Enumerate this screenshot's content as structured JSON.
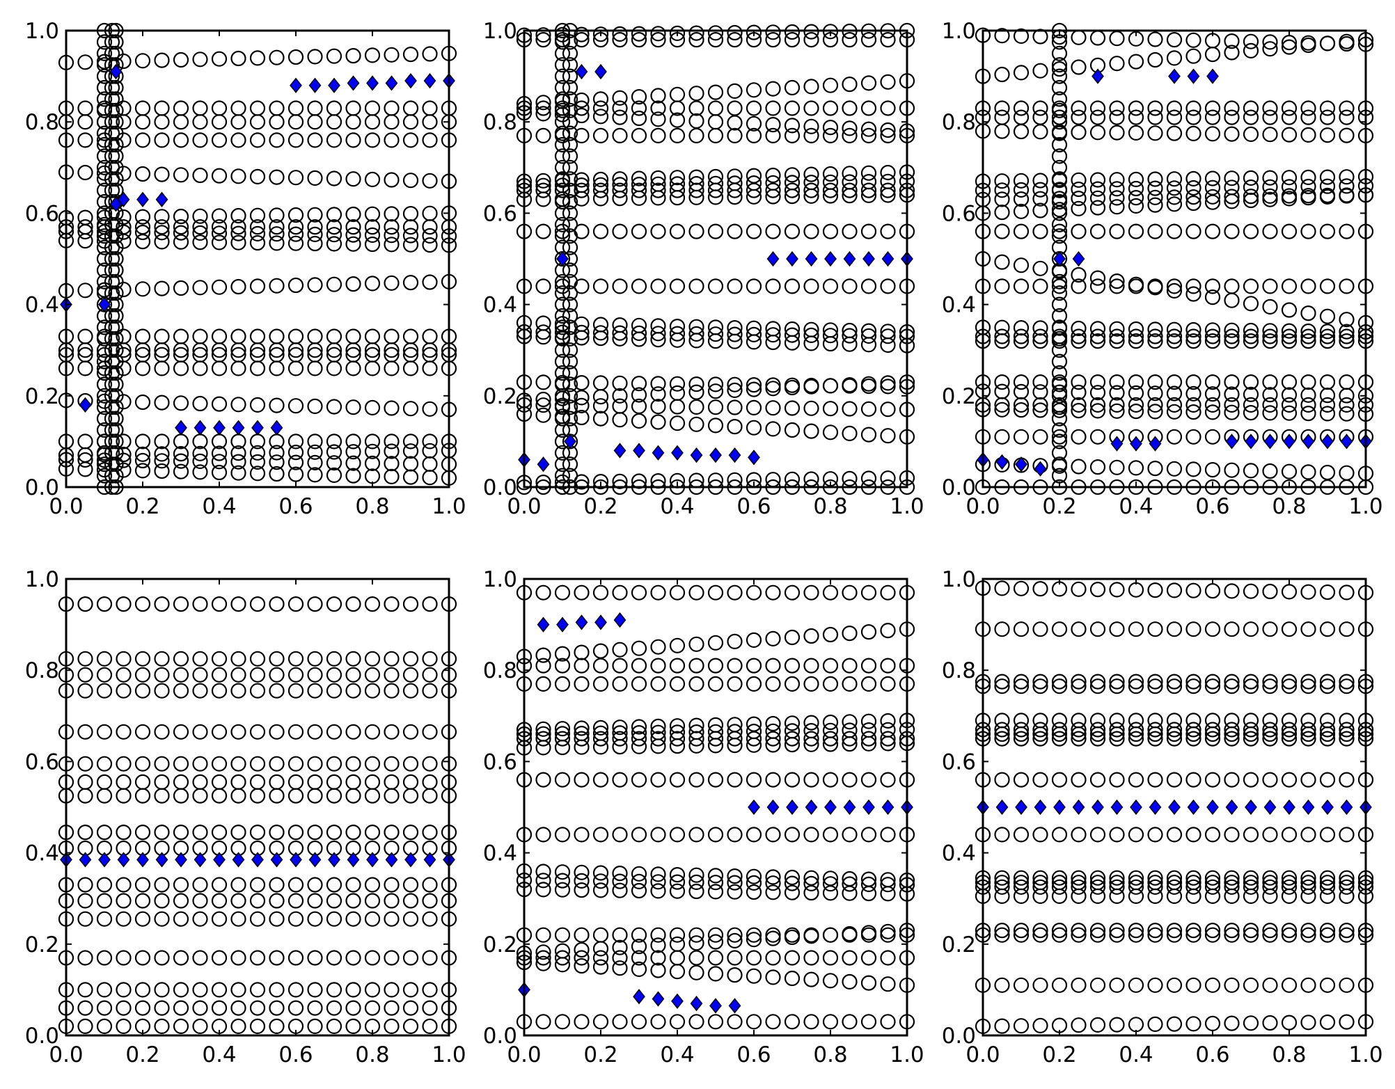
{
  "colors": {
    "circle_edge": "#000000",
    "diamond_fill": "#0000ee",
    "diamond_edge": "#000000",
    "axis": "#000000"
  },
  "x_grid": [
    0,
    0.05,
    0.1,
    0.15,
    0.2,
    0.25,
    0.3,
    0.35,
    0.4,
    0.45,
    0.5,
    0.55,
    0.6,
    0.65,
    0.7,
    0.75,
    0.8,
    0.85,
    0.9,
    0.95,
    1.0
  ],
  "chart_data": [
    {
      "type": "scatter",
      "xlim": [
        0,
        1
      ],
      "ylim": [
        0,
        1
      ],
      "xticks": [
        "0.0",
        "0.2",
        "0.4",
        "0.6",
        "0.8",
        "1.0"
      ],
      "yticks": [
        "0.0",
        "0.2",
        "0.4",
        "0.6",
        "0.8",
        "1.0"
      ],
      "grid": false,
      "circles_style": "open black circles",
      "circle_branches": [
        {
          "y0": 0.93,
          "y1": 0.95
        },
        {
          "y0": 0.83,
          "y1": 0.83
        },
        {
          "y0": 0.8,
          "y1": 0.8
        },
        {
          "y0": 0.76,
          "y1": 0.76
        },
        {
          "y0": 0.69,
          "y1": 0.67
        },
        {
          "y0": 0.59,
          "y1": 0.6
        },
        {
          "y0": 0.57,
          "y1": 0.57
        },
        {
          "y0": 0.56,
          "y1": 0.55
        },
        {
          "y0": 0.54,
          "y1": 0.53
        },
        {
          "y0": 0.43,
          "y1": 0.45
        },
        {
          "y0": 0.33,
          "y1": 0.33
        },
        {
          "y0": 0.3,
          "y1": 0.3
        },
        {
          "y0": 0.29,
          "y1": 0.29
        },
        {
          "y0": 0.26,
          "y1": 0.26
        },
        {
          "y0": 0.19,
          "y1": 0.17
        },
        {
          "y0": 0.1,
          "y1": 0.1
        },
        {
          "y0": 0.07,
          "y1": 0.08
        },
        {
          "y0": 0.06,
          "y1": 0.05
        },
        {
          "y0": 0.04,
          "y1": 0.02
        }
      ],
      "circle_transition": {
        "x_range": [
          0.0,
          0.15
        ],
        "cluster_x": [
          0.1,
          0.12,
          0.13
        ]
      },
      "diamond_points": [
        {
          "x": 0.0,
          "y": 0.4
        },
        {
          "x": 0.05,
          "y": 0.18
        },
        {
          "x": 0.1,
          "y": 0.4
        },
        {
          "x": 0.13,
          "y": 0.91
        },
        {
          "x": 0.13,
          "y": 0.62
        },
        {
          "x": 0.15,
          "y": 0.63
        },
        {
          "x": 0.2,
          "y": 0.63
        },
        {
          "x": 0.25,
          "y": 0.63
        },
        {
          "x": 0.3,
          "y": 0.13
        },
        {
          "x": 0.35,
          "y": 0.13
        },
        {
          "x": 0.4,
          "y": 0.13
        },
        {
          "x": 0.45,
          "y": 0.13
        },
        {
          "x": 0.5,
          "y": 0.13
        },
        {
          "x": 0.55,
          "y": 0.13
        },
        {
          "x": 0.6,
          "y": 0.88
        },
        {
          "x": 0.65,
          "y": 0.88
        },
        {
          "x": 0.7,
          "y": 0.88
        },
        {
          "x": 0.75,
          "y": 0.885
        },
        {
          "x": 0.8,
          "y": 0.885
        },
        {
          "x": 0.85,
          "y": 0.885
        },
        {
          "x": 0.9,
          "y": 0.89
        },
        {
          "x": 0.95,
          "y": 0.89
        },
        {
          "x": 1.0,
          "y": 0.89
        }
      ]
    },
    {
      "type": "scatter",
      "xlim": [
        0,
        1
      ],
      "ylim": [
        0,
        1
      ],
      "xticks": [
        "0.0",
        "0.2",
        "0.4",
        "0.6",
        "0.8",
        "1.0"
      ],
      "yticks": [
        "0.0",
        "0.2",
        "0.4",
        "0.6",
        "0.8",
        "1.0"
      ],
      "grid": false,
      "circles_style": "open black circles",
      "circle_branches": [
        {
          "y0": 0.99,
          "y1": 1.0
        },
        {
          "y0": 0.98,
          "y1": 0.98
        },
        {
          "y0": 0.84,
          "y1": 0.89
        },
        {
          "y0": 0.83,
          "y1": 0.83
        },
        {
          "y0": 0.82,
          "y1": 0.78
        },
        {
          "y0": 0.77,
          "y1": 0.77
        },
        {
          "y0": 0.67,
          "y1": 0.69
        },
        {
          "y0": 0.66,
          "y1": 0.67
        },
        {
          "y0": 0.65,
          "y1": 0.65
        },
        {
          "y0": 0.63,
          "y1": 0.64
        },
        {
          "y0": 0.56,
          "y1": 0.56
        },
        {
          "y0": 0.44,
          "y1": 0.44
        },
        {
          "y0": 0.36,
          "y1": 0.34
        },
        {
          "y0": 0.34,
          "y1": 0.33
        },
        {
          "y0": 0.33,
          "y1": 0.31
        },
        {
          "y0": 0.23,
          "y1": 0.22
        },
        {
          "y0": 0.19,
          "y1": 0.23
        },
        {
          "y0": 0.18,
          "y1": 0.17
        },
        {
          "y0": 0.16,
          "y1": 0.11
        },
        {
          "y0": 0.01,
          "y1": 0.02
        },
        {
          "y0": 0.0,
          "y1": 0.0
        }
      ],
      "circle_transition": {
        "x_range": [
          0.0,
          0.12
        ],
        "cluster_x": [
          0.1,
          0.12
        ]
      },
      "diamond_points": [
        {
          "x": 0.0,
          "y": 0.06
        },
        {
          "x": 0.05,
          "y": 0.05
        },
        {
          "x": 0.1,
          "y": 0.5
        },
        {
          "x": 0.12,
          "y": 0.1
        },
        {
          "x": 0.15,
          "y": 0.91
        },
        {
          "x": 0.2,
          "y": 0.91
        },
        {
          "x": 0.25,
          "y": 0.08
        },
        {
          "x": 0.3,
          "y": 0.08
        },
        {
          "x": 0.35,
          "y": 0.075
        },
        {
          "x": 0.4,
          "y": 0.075
        },
        {
          "x": 0.45,
          "y": 0.07
        },
        {
          "x": 0.5,
          "y": 0.07
        },
        {
          "x": 0.55,
          "y": 0.07
        },
        {
          "x": 0.6,
          "y": 0.065
        },
        {
          "x": 0.65,
          "y": 0.5
        },
        {
          "x": 0.7,
          "y": 0.5
        },
        {
          "x": 0.75,
          "y": 0.5
        },
        {
          "x": 0.8,
          "y": 0.5
        },
        {
          "x": 0.85,
          "y": 0.5
        },
        {
          "x": 0.9,
          "y": 0.5
        },
        {
          "x": 0.95,
          "y": 0.5
        },
        {
          "x": 1.0,
          "y": 0.5
        }
      ]
    },
    {
      "type": "scatter",
      "xlim": [
        0,
        1
      ],
      "ylim": [
        0,
        1
      ],
      "xticks": [
        "0.0",
        "0.2",
        "0.4",
        "0.6",
        "0.8",
        "1.0"
      ],
      "yticks": [
        "0.0",
        "0.2",
        "0.4",
        "0.6",
        "0.8",
        "1.0"
      ],
      "grid": false,
      "circles_style": "open black circles",
      "circle_branches": [
        {
          "y0": 0.99,
          "y1": 0.97
        },
        {
          "y0": 0.9,
          "y1": 0.98
        },
        {
          "y0": 0.83,
          "y1": 0.83
        },
        {
          "y0": 0.81,
          "y1": 0.81
        },
        {
          "y0": 0.78,
          "y1": 0.77
        },
        {
          "y0": 0.67,
          "y1": 0.68
        },
        {
          "y0": 0.65,
          "y1": 0.66
        },
        {
          "y0": 0.63,
          "y1": 0.64
        },
        {
          "y0": 0.6,
          "y1": 0.64
        },
        {
          "y0": 0.56,
          "y1": 0.56
        },
        {
          "y0": 0.5,
          "y1": 0.36
        },
        {
          "y0": 0.44,
          "y1": 0.44
        },
        {
          "y0": 0.35,
          "y1": 0.34
        },
        {
          "y0": 0.33,
          "y1": 0.33
        },
        {
          "y0": 0.32,
          "y1": 0.32
        },
        {
          "y0": 0.23,
          "y1": 0.23
        },
        {
          "y0": 0.21,
          "y1": 0.2
        },
        {
          "y0": 0.18,
          "y1": 0.18
        },
        {
          "y0": 0.17,
          "y1": 0.16
        },
        {
          "y0": 0.11,
          "y1": 0.11
        },
        {
          "y0": 0.05,
          "y1": 0.03
        },
        {
          "y0": 0.0,
          "y1": 0.0
        }
      ],
      "circle_transition": {
        "x_range": [
          0.0,
          0.3
        ],
        "cluster_x": [
          0.2
        ]
      },
      "diamond_points": [
        {
          "x": 0.0,
          "y": 0.06
        },
        {
          "x": 0.05,
          "y": 0.055
        },
        {
          "x": 0.1,
          "y": 0.05
        },
        {
          "x": 0.15,
          "y": 0.04
        },
        {
          "x": 0.2,
          "y": 0.5
        },
        {
          "x": 0.25,
          "y": 0.5
        },
        {
          "x": 0.3,
          "y": 0.9
        },
        {
          "x": 0.35,
          "y": 0.095
        },
        {
          "x": 0.4,
          "y": 0.095
        },
        {
          "x": 0.45,
          "y": 0.095
        },
        {
          "x": 0.5,
          "y": 0.9
        },
        {
          "x": 0.55,
          "y": 0.9
        },
        {
          "x": 0.6,
          "y": 0.9
        },
        {
          "x": 0.65,
          "y": 0.1
        },
        {
          "x": 0.7,
          "y": 0.1
        },
        {
          "x": 0.75,
          "y": 0.1
        },
        {
          "x": 0.8,
          "y": 0.1
        },
        {
          "x": 0.85,
          "y": 0.1
        },
        {
          "x": 0.9,
          "y": 0.1
        },
        {
          "x": 0.95,
          "y": 0.1
        },
        {
          "x": 1.0,
          "y": 0.1
        }
      ]
    },
    {
      "type": "scatter",
      "xlim": [
        0,
        1
      ],
      "ylim": [
        0,
        1
      ],
      "xticks": [
        "0.0",
        "0.2",
        "0.4",
        "0.6",
        "0.8",
        "1.0"
      ],
      "yticks": [
        "0.0",
        "0.2",
        "0.4",
        "0.6",
        "0.8",
        "1.0"
      ],
      "grid": false,
      "circles_style": "open black circles",
      "circle_branches": [
        {
          "y0": 0.945,
          "y1": 0.945
        },
        {
          "y0": 0.825,
          "y1": 0.825
        },
        {
          "y0": 0.79,
          "y1": 0.79
        },
        {
          "y0": 0.755,
          "y1": 0.755
        },
        {
          "y0": 0.665,
          "y1": 0.665
        },
        {
          "y0": 0.595,
          "y1": 0.595
        },
        {
          "y0": 0.555,
          "y1": 0.555
        },
        {
          "y0": 0.525,
          "y1": 0.525
        },
        {
          "y0": 0.445,
          "y1": 0.445
        },
        {
          "y0": 0.41,
          "y1": 0.41
        },
        {
          "y0": 0.33,
          "y1": 0.33
        },
        {
          "y0": 0.295,
          "y1": 0.295
        },
        {
          "y0": 0.255,
          "y1": 0.255
        },
        {
          "y0": 0.17,
          "y1": 0.17
        },
        {
          "y0": 0.1,
          "y1": 0.1
        },
        {
          "y0": 0.06,
          "y1": 0.06
        },
        {
          "y0": 0.02,
          "y1": 0.02
        }
      ],
      "circle_transition": null,
      "diamond_points": [
        {
          "x": 0.0,
          "y": 0.385
        },
        {
          "x": 0.05,
          "y": 0.385
        },
        {
          "x": 0.1,
          "y": 0.385
        },
        {
          "x": 0.15,
          "y": 0.385
        },
        {
          "x": 0.2,
          "y": 0.385
        },
        {
          "x": 0.25,
          "y": 0.385
        },
        {
          "x": 0.3,
          "y": 0.385
        },
        {
          "x": 0.35,
          "y": 0.385
        },
        {
          "x": 0.4,
          "y": 0.385
        },
        {
          "x": 0.45,
          "y": 0.385
        },
        {
          "x": 0.5,
          "y": 0.385
        },
        {
          "x": 0.55,
          "y": 0.385
        },
        {
          "x": 0.6,
          "y": 0.385
        },
        {
          "x": 0.65,
          "y": 0.385
        },
        {
          "x": 0.7,
          "y": 0.385
        },
        {
          "x": 0.75,
          "y": 0.385
        },
        {
          "x": 0.8,
          "y": 0.385
        },
        {
          "x": 0.85,
          "y": 0.385
        },
        {
          "x": 0.9,
          "y": 0.385
        },
        {
          "x": 0.95,
          "y": 0.385
        },
        {
          "x": 1.0,
          "y": 0.385
        }
      ]
    },
    {
      "type": "scatter",
      "xlim": [
        0,
        1
      ],
      "ylim": [
        0,
        1
      ],
      "xticks": [
        "0.0",
        "0.2",
        "0.4",
        "0.6",
        "0.8",
        "1.0"
      ],
      "yticks": [
        "0.0",
        "0.2",
        "0.4",
        "0.6",
        "0.8",
        "1.0"
      ],
      "grid": false,
      "circles_style": "open black circles",
      "circle_branches": [
        {
          "y0": 0.97,
          "y1": 0.97
        },
        {
          "y0": 0.83,
          "y1": 0.89
        },
        {
          "y0": 0.81,
          "y1": 0.81
        },
        {
          "y0": 0.77,
          "y1": 0.77
        },
        {
          "y0": 0.67,
          "y1": 0.69
        },
        {
          "y0": 0.66,
          "y1": 0.67
        },
        {
          "y0": 0.65,
          "y1": 0.65
        },
        {
          "y0": 0.63,
          "y1": 0.64
        },
        {
          "y0": 0.56,
          "y1": 0.56
        },
        {
          "y0": 0.44,
          "y1": 0.44
        },
        {
          "y0": 0.36,
          "y1": 0.34
        },
        {
          "y0": 0.34,
          "y1": 0.33
        },
        {
          "y0": 0.32,
          "y1": 0.31
        },
        {
          "y0": 0.22,
          "y1": 0.22
        },
        {
          "y0": 0.18,
          "y1": 0.23
        },
        {
          "y0": 0.17,
          "y1": 0.17
        },
        {
          "y0": 0.16,
          "y1": 0.11
        },
        {
          "y0": 0.03,
          "y1": 0.03
        }
      ],
      "circle_transition": null,
      "diamond_points": [
        {
          "x": 0.0,
          "y": 0.1
        },
        {
          "x": 0.05,
          "y": 0.9
        },
        {
          "x": 0.1,
          "y": 0.9
        },
        {
          "x": 0.15,
          "y": 0.905
        },
        {
          "x": 0.2,
          "y": 0.905
        },
        {
          "x": 0.25,
          "y": 0.91
        },
        {
          "x": 0.3,
          "y": 0.085
        },
        {
          "x": 0.35,
          "y": 0.08
        },
        {
          "x": 0.4,
          "y": 0.075
        },
        {
          "x": 0.45,
          "y": 0.07
        },
        {
          "x": 0.5,
          "y": 0.065
        },
        {
          "x": 0.55,
          "y": 0.065
        },
        {
          "x": 0.6,
          "y": 0.5
        },
        {
          "x": 0.65,
          "y": 0.5
        },
        {
          "x": 0.7,
          "y": 0.5
        },
        {
          "x": 0.75,
          "y": 0.5
        },
        {
          "x": 0.8,
          "y": 0.5
        },
        {
          "x": 0.85,
          "y": 0.5
        },
        {
          "x": 0.9,
          "y": 0.5
        },
        {
          "x": 0.95,
          "y": 0.5
        },
        {
          "x": 1.0,
          "y": 0.5
        }
      ]
    },
    {
      "type": "scatter",
      "xlim": [
        0,
        1
      ],
      "ylim": [
        0,
        1
      ],
      "xticks": [
        "0.0",
        "0.2",
        "0.4",
        "0.6",
        "0.8",
        "1.0"
      ],
      "yticks": [
        "0.0",
        "0.2",
        "0.4",
        "0.6",
        "0.8",
        "1.0"
      ],
      "grid": false,
      "circles_style": "open black circles",
      "circle_branches": [
        {
          "y0": 0.98,
          "y1": 0.97
        },
        {
          "y0": 0.89,
          "y1": 0.89
        },
        {
          "y0": 0.775,
          "y1": 0.775
        },
        {
          "y0": 0.765,
          "y1": 0.765
        },
        {
          "y0": 0.69,
          "y1": 0.69
        },
        {
          "y0": 0.67,
          "y1": 0.67
        },
        {
          "y0": 0.66,
          "y1": 0.66
        },
        {
          "y0": 0.65,
          "y1": 0.65
        },
        {
          "y0": 0.56,
          "y1": 0.56
        },
        {
          "y0": 0.44,
          "y1": 0.44
        },
        {
          "y0": 0.345,
          "y1": 0.345
        },
        {
          "y0": 0.335,
          "y1": 0.335
        },
        {
          "y0": 0.325,
          "y1": 0.325
        },
        {
          "y0": 0.305,
          "y1": 0.305
        },
        {
          "y0": 0.23,
          "y1": 0.23
        },
        {
          "y0": 0.22,
          "y1": 0.22
        },
        {
          "y0": 0.11,
          "y1": 0.11
        },
        {
          "y0": 0.02,
          "y1": 0.03
        }
      ],
      "circle_transition": null,
      "diamond_points": [
        {
          "x": 0.0,
          "y": 0.5
        },
        {
          "x": 0.05,
          "y": 0.5
        },
        {
          "x": 0.1,
          "y": 0.5
        },
        {
          "x": 0.15,
          "y": 0.5
        },
        {
          "x": 0.2,
          "y": 0.5
        },
        {
          "x": 0.25,
          "y": 0.5
        },
        {
          "x": 0.3,
          "y": 0.5
        },
        {
          "x": 0.35,
          "y": 0.5
        },
        {
          "x": 0.4,
          "y": 0.5
        },
        {
          "x": 0.45,
          "y": 0.5
        },
        {
          "x": 0.5,
          "y": 0.5
        },
        {
          "x": 0.55,
          "y": 0.5
        },
        {
          "x": 0.6,
          "y": 0.5
        },
        {
          "x": 0.65,
          "y": 0.5
        },
        {
          "x": 0.7,
          "y": 0.5
        },
        {
          "x": 0.75,
          "y": 0.5
        },
        {
          "x": 0.8,
          "y": 0.5
        },
        {
          "x": 0.85,
          "y": 0.5
        },
        {
          "x": 0.9,
          "y": 0.5
        },
        {
          "x": 0.95,
          "y": 0.5
        },
        {
          "x": 1.0,
          "y": 0.5
        }
      ]
    }
  ]
}
